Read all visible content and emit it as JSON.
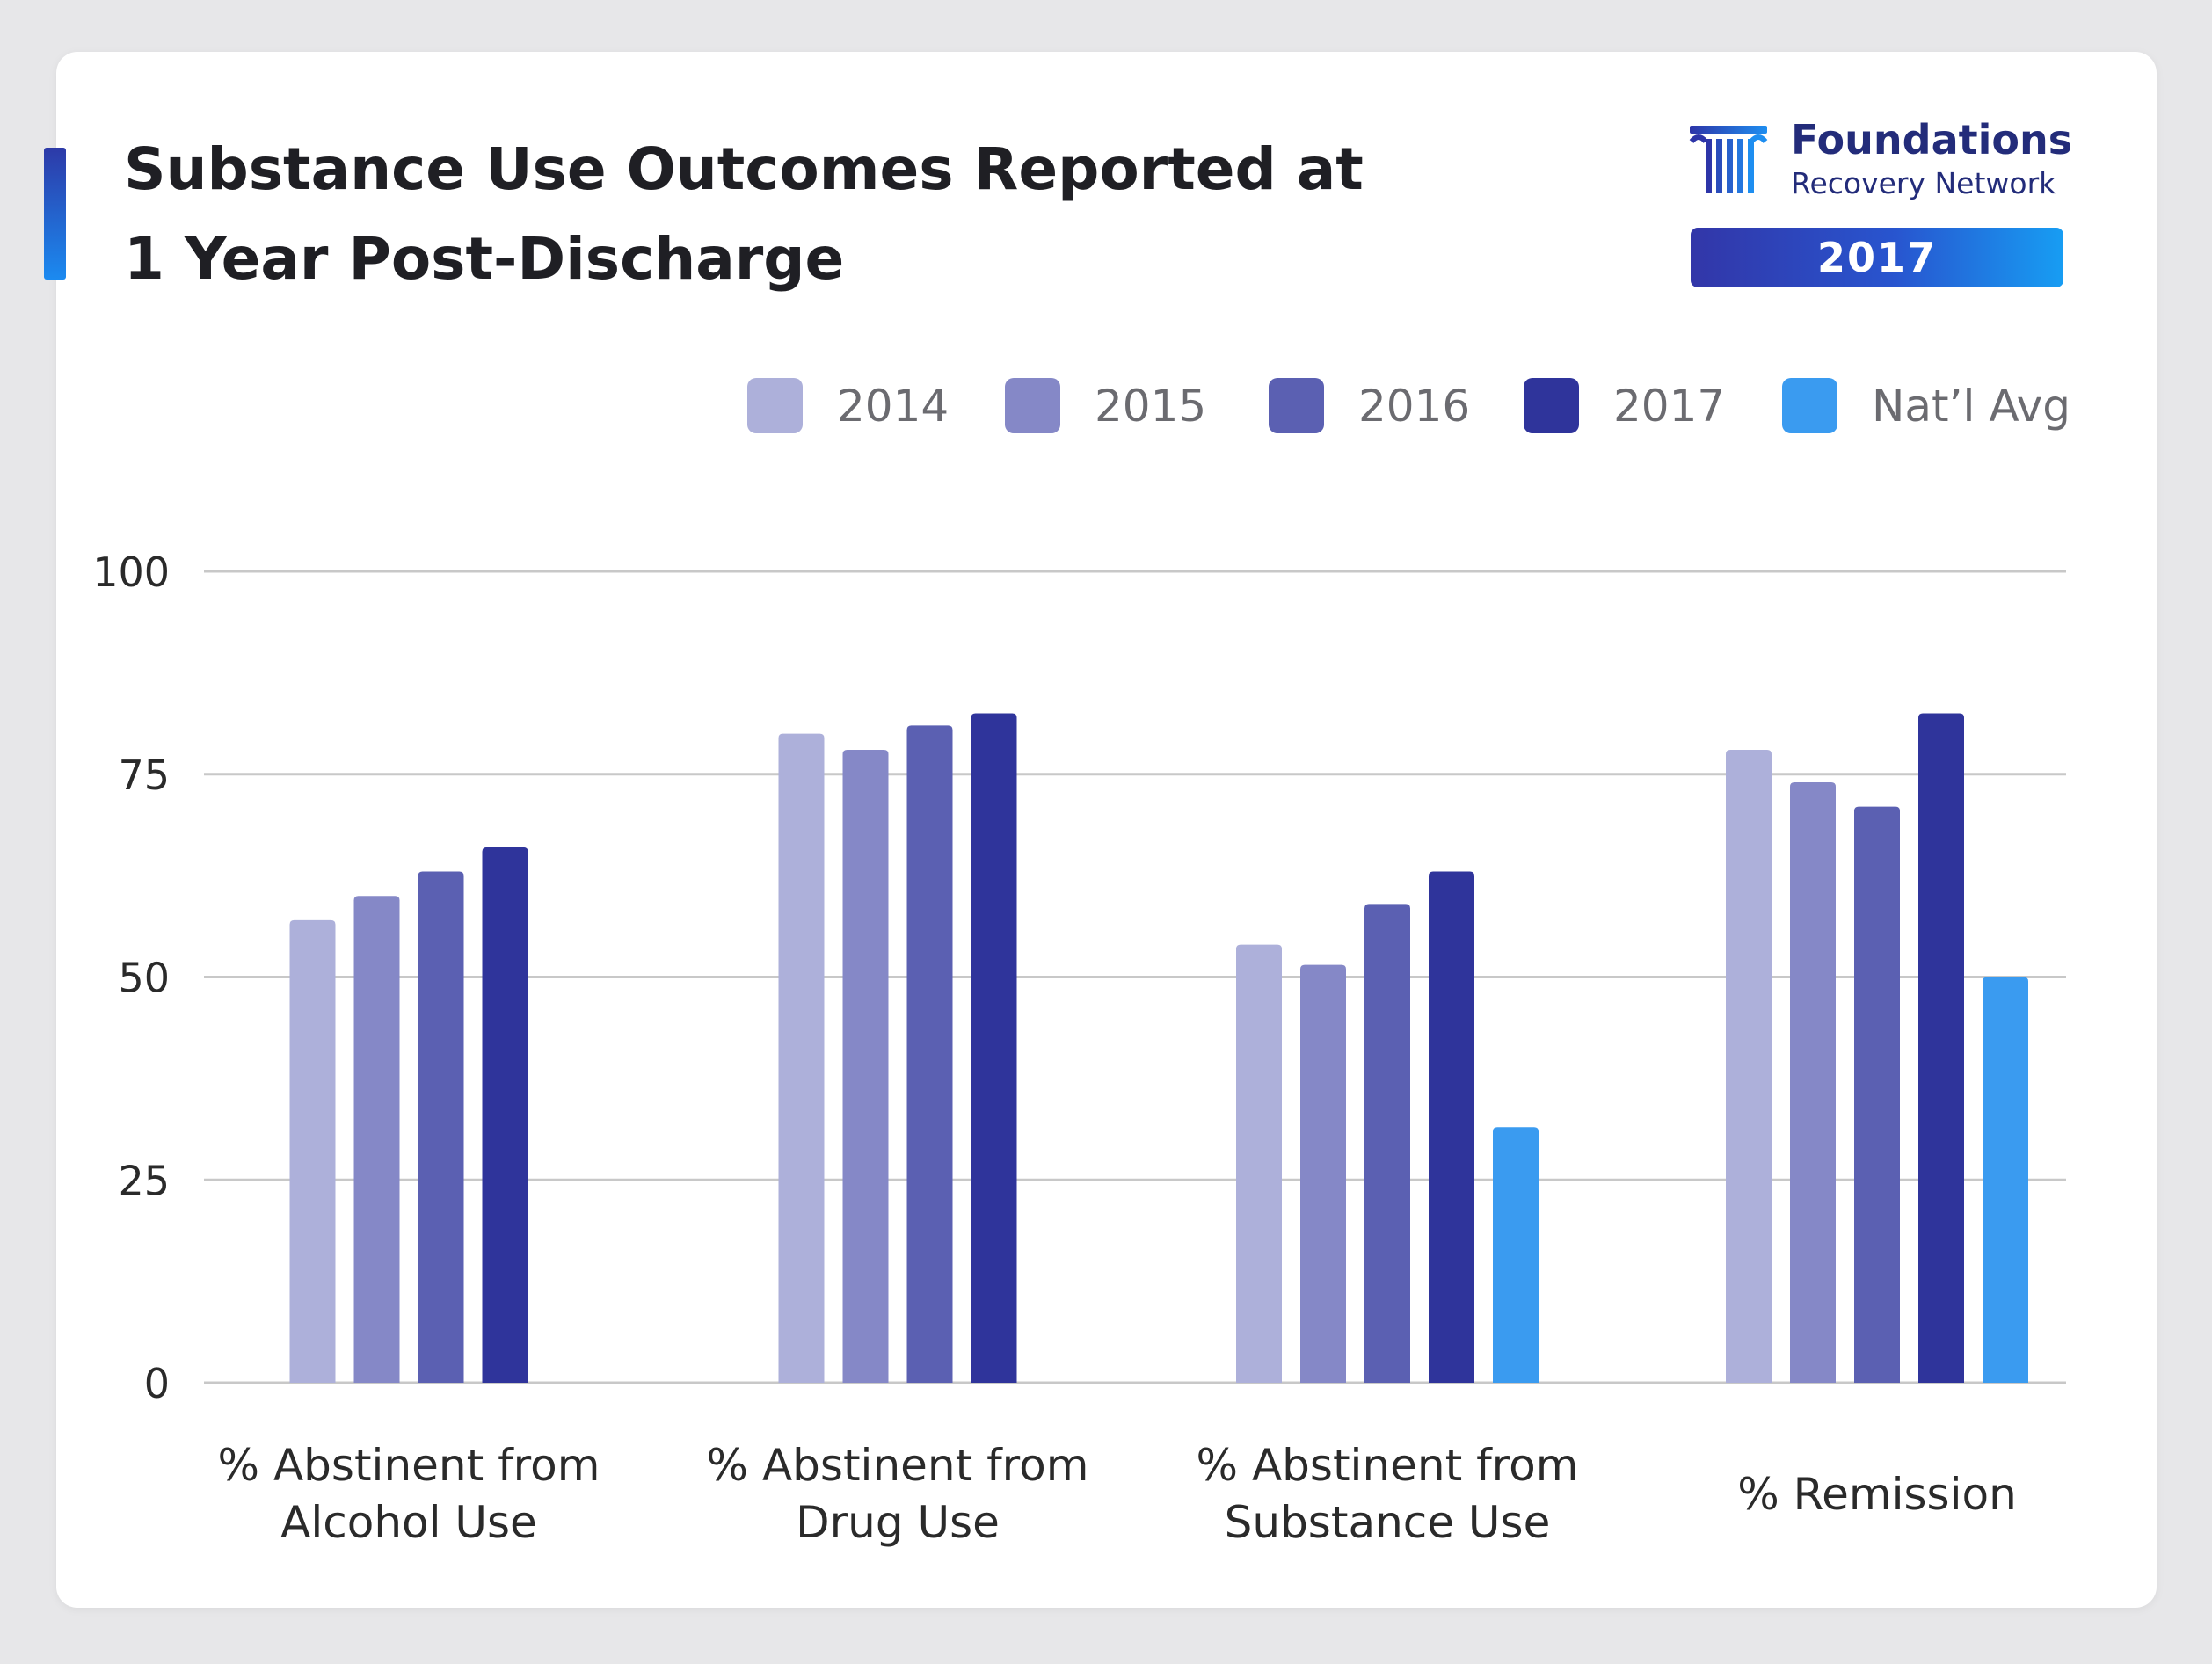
{
  "header": {
    "title_line1": "Substance Use Outcomes Reported at",
    "title_line2": "1 Year Post-Discharge"
  },
  "logo": {
    "name": "Foundations",
    "subtitle": "Recovery Network",
    "year_badge": "2017",
    "icon": "column-pillar-icon"
  },
  "colors": {
    "2014": "#adb0da",
    "2015": "#8588c7",
    "2016": "#5b60b2",
    "2017": "#2f349b",
    "natl_avg": "#3a9bf0",
    "brand_navy": "#232c7a",
    "gridline": "#c8c8c8"
  },
  "chart_data": {
    "type": "bar",
    "title": "Substance Use Outcomes Reported at 1 Year Post-Discharge",
    "xlabel": "",
    "ylabel": "",
    "ylim": [
      0,
      100
    ],
    "yticks": [
      0,
      25,
      50,
      75,
      100
    ],
    "grid": true,
    "legend_position": "top-right",
    "categories": [
      [
        "% Abstinent from",
        "Alcohol Use"
      ],
      [
        "% Abstinent from",
        "Drug Use"
      ],
      [
        "% Abstinent from",
        "Substance Use"
      ],
      [
        "% Remission"
      ]
    ],
    "series": [
      {
        "name": "2014",
        "color": "#adb0da",
        "values": [
          57,
          80,
          54,
          78
        ]
      },
      {
        "name": "2015",
        "color": "#8588c7",
        "values": [
          60,
          78,
          51.5,
          74
        ]
      },
      {
        "name": "2016",
        "color": "#5b60b2",
        "values": [
          63,
          81,
          59,
          71
        ]
      },
      {
        "name": "2017",
        "color": "#2f349b",
        "values": [
          66,
          82.5,
          63,
          82.5
        ]
      },
      {
        "name": "Nat’l Avg",
        "color": "#3a9bf0",
        "values": [
          null,
          null,
          31.5,
          50
        ]
      }
    ]
  }
}
